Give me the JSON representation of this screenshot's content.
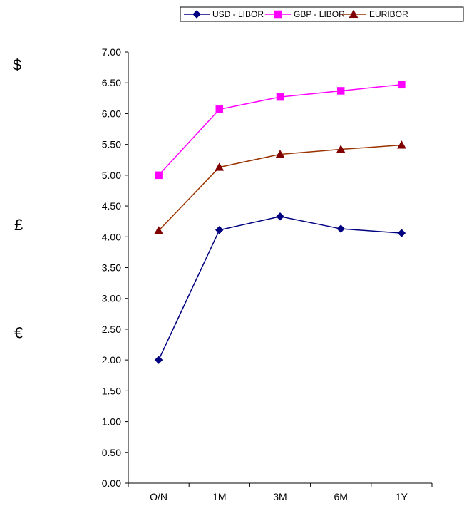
{
  "chart_data": {
    "type": "line",
    "title": "",
    "xlabel": "",
    "ylabel": "",
    "categories": [
      "O/N",
      "1M",
      "3M",
      "6M",
      "1Y"
    ],
    "ylim": [
      0,
      7
    ],
    "ytick_step": 0.5,
    "ytick_labels": [
      "0.00",
      "0.50",
      "1.00",
      "1.50",
      "2.00",
      "2.50",
      "3.00",
      "3.50",
      "4.00",
      "4.50",
      "5.00",
      "5.50",
      "6.00",
      "6.50",
      "7.00"
    ],
    "grid": false,
    "legend_position": "top-right",
    "series": [
      {
        "name": "USD - LIBOR",
        "values": [
          2.0,
          4.11,
          4.33,
          4.13,
          4.06
        ],
        "color": "#000080",
        "marker": "diamond"
      },
      {
        "name": "GBP - LIBOR",
        "values": [
          5.0,
          6.07,
          6.27,
          6.37,
          6.47
        ],
        "color": "#FF00FF",
        "marker": "square"
      },
      {
        "name": "EURIBOR",
        "values": [
          4.1,
          5.13,
          5.34,
          5.42,
          5.49
        ],
        "color": "#993300",
        "line_color": "#993300",
        "marker_color": "#800000",
        "marker": "triangle"
      }
    ],
    "annotations": [
      {
        "text": "$",
        "near_value": 6.8
      },
      {
        "text": "£",
        "near_value": 4.2
      },
      {
        "text": "€",
        "near_value": 2.45
      }
    ]
  }
}
